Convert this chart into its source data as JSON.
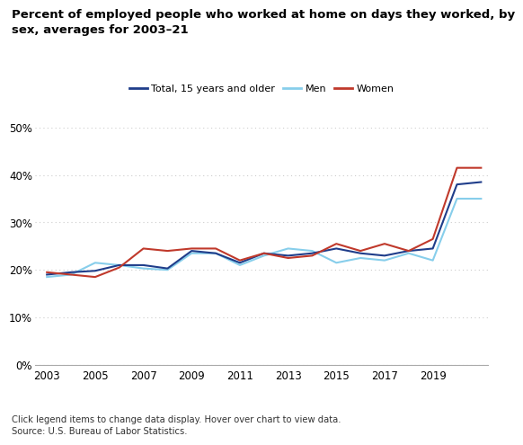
{
  "title": "Percent of employed people who worked at home on days they worked, by\nsex, averages for 2003–21",
  "years": [
    2003,
    2004,
    2005,
    2006,
    2007,
    2008,
    2009,
    2010,
    2011,
    2012,
    2013,
    2014,
    2015,
    2016,
    2017,
    2018,
    2019,
    2020,
    2021
  ],
  "total": [
    19.0,
    19.5,
    19.8,
    21.0,
    21.0,
    20.3,
    24.0,
    23.5,
    21.5,
    23.5,
    23.0,
    23.5,
    24.5,
    23.5,
    23.0,
    24.0,
    24.5,
    38.0,
    38.5
  ],
  "men": [
    18.5,
    19.0,
    21.5,
    21.0,
    20.3,
    20.0,
    23.5,
    23.5,
    21.0,
    23.0,
    24.5,
    24.0,
    21.5,
    22.5,
    22.0,
    23.5,
    22.0,
    35.0,
    35.0
  ],
  "women": [
    19.5,
    19.0,
    18.5,
    20.5,
    24.5,
    24.0,
    24.5,
    24.5,
    22.0,
    23.5,
    22.5,
    23.0,
    25.5,
    24.0,
    25.5,
    24.0,
    26.5,
    41.5,
    41.5
  ],
  "total_color": "#1f3d8a",
  "men_color": "#87ceeb",
  "women_color": "#c0392b",
  "ylim": [
    0,
    50
  ],
  "yticks": [
    0,
    10,
    20,
    30,
    40,
    50
  ],
  "xticks": [
    2003,
    2005,
    2007,
    2009,
    2011,
    2013,
    2015,
    2017,
    2019
  ],
  "xlim_left": 2002.5,
  "xlim_right": 2021.3,
  "grid_color": "#cccccc",
  "background_color": "#ffffff",
  "footnote": "Click legend items to change data display. Hover over chart to view data.\nSource: U.S. Bureau of Labor Statistics.",
  "legend_labels": [
    "Total, 15 years and older",
    "Men",
    "Women"
  ],
  "title_fontsize": 9.5,
  "axis_fontsize": 8.5,
  "footnote_fontsize": 7.2
}
